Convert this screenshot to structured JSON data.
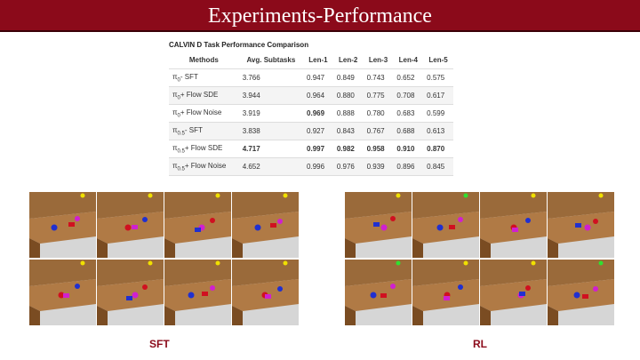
{
  "header": {
    "title": "Experiments-Performance"
  },
  "table": {
    "caption": "CALVIN D Task Performance Comparison",
    "columns": [
      "Methods",
      "Avg. Subtasks",
      "Len-1",
      "Len-2",
      "Len-3",
      "Len-4",
      "Len-5"
    ],
    "rows": [
      [
        {
          "base": "π",
          "sub": "0",
          "rest": "- SFT"
        },
        "3.766",
        "0.947",
        "0.849",
        "0.743",
        "0.652",
        "0.575"
      ],
      [
        {
          "base": "π",
          "sub": "0",
          "rest": "+ Flow SDE"
        },
        "3.944",
        "0.964",
        "0.880",
        "0.775",
        "0.708",
        "0.617"
      ],
      [
        {
          "base": "π",
          "sub": "0",
          "rest": "+ Flow Noise"
        },
        "3.919",
        "0.969",
        "0.888",
        "0.780",
        "0.683",
        "0.599"
      ],
      [
        {
          "base": "π",
          "sub": "0.5",
          "rest": "- SFT"
        },
        "3.838",
        "0.927",
        "0.843",
        "0.767",
        "0.688",
        "0.613"
      ],
      [
        {
          "base": "π",
          "sub": "0.5",
          "rest": "+ Flow SDE"
        },
        "4.717",
        "0.997",
        "0.982",
        "0.958",
        "0.910",
        "0.870"
      ],
      [
        {
          "base": "π",
          "sub": "0.5",
          "rest": "+ Flow Noise"
        },
        "4.652",
        "0.996",
        "0.976",
        "0.939",
        "0.896",
        "0.845"
      ]
    ],
    "bold_cells": [
      [
        2,
        2
      ],
      [
        4,
        1
      ],
      [
        4,
        2
      ],
      [
        4,
        3
      ],
      [
        4,
        4
      ],
      [
        4,
        5
      ],
      [
        4,
        6
      ]
    ]
  },
  "figures": [
    {
      "label": "SFT"
    },
    {
      "label": "RL"
    }
  ]
}
